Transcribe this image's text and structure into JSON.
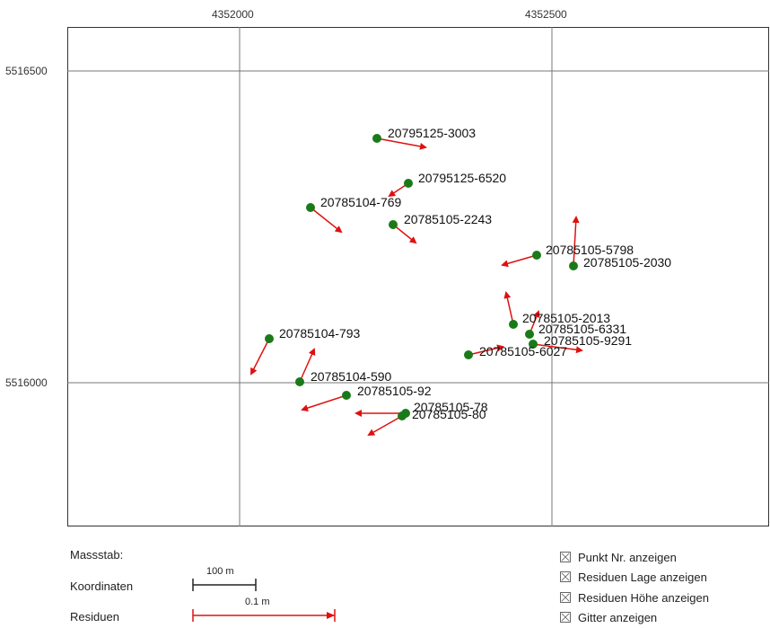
{
  "map": {
    "x_ticks": [
      "4352000",
      "4352500"
    ],
    "y_ticks": [
      "5516500",
      "5516000"
    ],
    "points": [
      {
        "label": "20795125-3003"
      },
      {
        "label": "20795125-6520"
      },
      {
        "label": "20785104-769"
      },
      {
        "label": "20785105-2243"
      },
      {
        "label": "20785105-5798"
      },
      {
        "label": "20785105-2030"
      },
      {
        "label": "20785105-2013"
      },
      {
        "label": "20785105-6331"
      },
      {
        "label": "20785105-9291"
      },
      {
        "label": "20785105-6027"
      },
      {
        "label": "20785104-793"
      },
      {
        "label": "20785104-590"
      },
      {
        "label": "20785105-92"
      },
      {
        "label": "20785105-78"
      },
      {
        "label": "20785105-80"
      }
    ],
    "colors": {
      "point": "#1a7a1a",
      "residual": "#e01010",
      "grid": "#777777"
    }
  },
  "legend": {
    "title": "Massstab:",
    "rows": [
      {
        "label": "Koordinaten",
        "scale_text": "100 m"
      },
      {
        "label": "Residuen",
        "scale_text": "0.1 m"
      }
    ]
  },
  "options": [
    {
      "label": "Punkt Nr. anzeigen",
      "checked": true
    },
    {
      "label": "Residuen Lage anzeigen",
      "checked": true
    },
    {
      "label": "Residuen Höhe anzeigen",
      "checked": true
    },
    {
      "label": "Gitter anzeigen",
      "checked": true
    }
  ]
}
